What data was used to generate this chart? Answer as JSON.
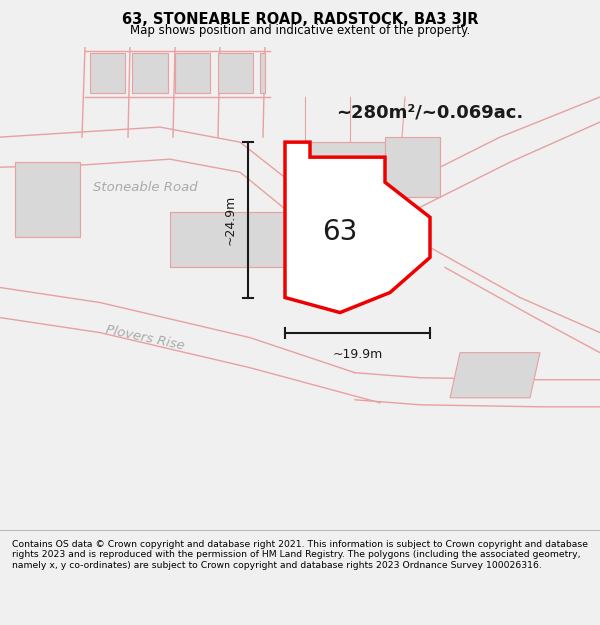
{
  "title": "63, STONEABLE ROAD, RADSTOCK, BA3 3JR",
  "subtitle": "Map shows position and indicative extent of the property.",
  "area_label": "~280m²/~0.069ac.",
  "number_label": "63",
  "dim_width": "~19.9m",
  "dim_height": "~24.9m",
  "road_label_1": "Stoneable Road",
  "road_label_2": "Plovers Rise",
  "footer_text": "Contains OS data © Crown copyright and database right 2021. This information is subject to Crown copyright and database rights 2023 and is reproduced with the permission of HM Land Registry. The polygons (including the associated geometry, namely x, y co-ordinates) are subject to Crown copyright and database rights 2023 Ordnance Survey 100026316.",
  "bg_color": "#f0f0f0",
  "map_bg": "#ffffff",
  "plot_fill": "#ffffff",
  "plot_stroke": "#ee0000",
  "road_line_color": "#e8a0a0",
  "dim_color": "#1a1a1a",
  "label_color": "#aaaaaa",
  "title_color": "#000000",
  "footer_color": "#000000",
  "figsize": [
    6.0,
    6.25
  ],
  "dpi": 100
}
